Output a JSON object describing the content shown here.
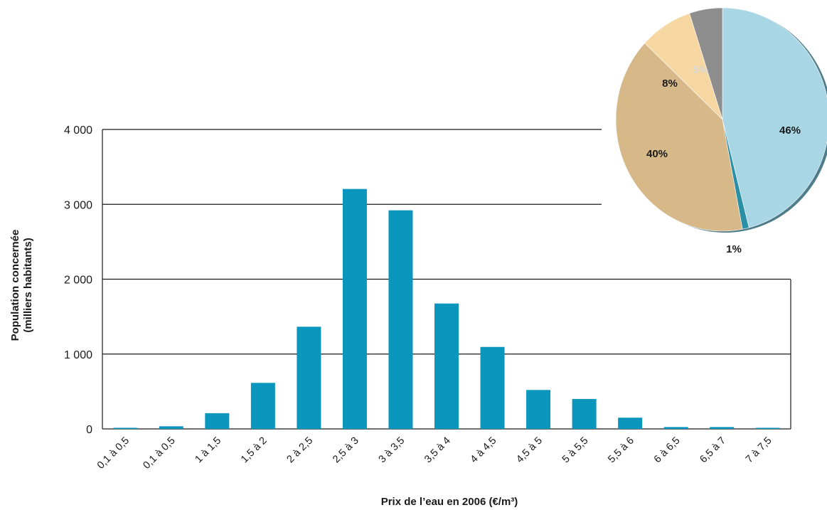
{
  "chart_data": [
    {
      "type": "bar",
      "xlabel": "Prix de l’eau en 2006 (€/m³)",
      "ylabel_line1": "Population concernée",
      "ylabel_line2": "(milliers habitants)",
      "ylim": [
        0,
        4000
      ],
      "y_ticks": [
        0,
        1000,
        2000,
        3000,
        4000
      ],
      "y_tick_labels": [
        "0",
        "1 000",
        "2 000",
        "3 000",
        "4 000"
      ],
      "grid": true,
      "categories": [
        "0,1 à 0,5",
        "0,1 à 0,5",
        "1 à 1,5",
        "1,5 à 2",
        "2 à 2,5",
        "2,5 à 3",
        "3 à 3,5",
        "3,5 à 4",
        "4 à 4,5",
        "4,5 à 5",
        "5 à 5,5",
        "5,5 à 6",
        "6 à 6,5",
        "6,5 à 7",
        "7 à 7,5"
      ],
      "values": [
        15,
        35,
        210,
        615,
        1365,
        3205,
        2920,
        1675,
        1095,
        520,
        400,
        150,
        25,
        25,
        15
      ],
      "bar_color": "#0b96bd"
    },
    {
      "type": "pie",
      "slices": [
        {
          "label": "46%",
          "value": 46,
          "color": "#a9d6e5"
        },
        {
          "label": "1%",
          "value": 1,
          "color": "#2b8fa6"
        },
        {
          "label": "40%",
          "value": 40,
          "color": "#d6b889"
        },
        {
          "label": "8%",
          "value": 8,
          "color": "#f7d7a1"
        },
        {
          "label": "5%",
          "value": 5,
          "color": "#8e8e8e"
        }
      ]
    }
  ]
}
